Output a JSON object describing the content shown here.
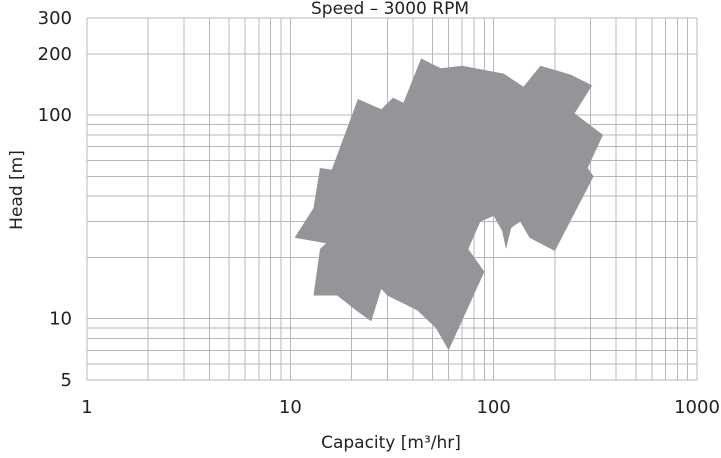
{
  "chart_data": {
    "type": "area",
    "title": "Speed – 3000 RPM",
    "xlabel": "Capacity [m³/hr]",
    "ylabel": "Head [m]",
    "x_scale": "log",
    "y_scale": "log",
    "xlim": [
      1,
      1000
    ],
    "ylim": [
      5,
      300
    ],
    "x_tick_labels": [
      "1",
      "10",
      "100",
      "1000"
    ],
    "x_tick_values": [
      1,
      10,
      100,
      1000
    ],
    "y_tick_labels": [
      "300",
      "200",
      "100",
      "10",
      "5"
    ],
    "y_tick_values": [
      300,
      200,
      100,
      10,
      5
    ],
    "grid": true,
    "region_color": "#939598",
    "series": [
      {
        "values": [
          [
            10.5,
            25
          ],
          [
            13,
            35
          ],
          [
            14,
            55
          ],
          [
            16,
            54
          ],
          [
            21.5,
            120
          ],
          [
            28,
            107
          ],
          [
            32,
            122
          ],
          [
            36,
            115
          ],
          [
            44,
            190
          ],
          [
            50,
            178
          ],
          [
            55,
            170
          ],
          [
            70,
            175
          ],
          [
            112,
            160
          ],
          [
            140,
            138
          ],
          [
            170,
            175
          ],
          [
            240,
            158
          ],
          [
            305,
            140
          ],
          [
            250,
            102
          ],
          [
            345,
            80
          ],
          [
            290,
            55
          ],
          [
            310,
            50
          ],
          [
            200,
            21.5
          ],
          [
            150,
            25
          ],
          [
            135,
            30
          ],
          [
            122,
            28
          ],
          [
            115,
            22
          ],
          [
            110,
            27
          ],
          [
            100,
            32
          ],
          [
            86,
            30
          ],
          [
            75,
            22
          ],
          [
            90,
            17
          ],
          [
            60,
            7
          ],
          [
            52,
            9
          ],
          [
            42,
            11
          ],
          [
            30,
            13
          ],
          [
            28,
            14
          ],
          [
            25,
            9.7
          ],
          [
            21,
            11
          ],
          [
            17,
            13
          ],
          [
            13,
            13
          ],
          [
            14,
            22
          ],
          [
            15,
            23.5
          ]
        ]
      }
    ]
  }
}
